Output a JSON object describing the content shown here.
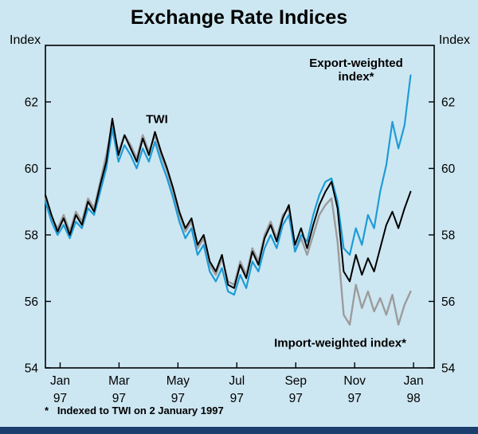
{
  "chart_data": {
    "type": "line",
    "title": "Exchange Rate Indices",
    "axis_unit_left": "Index",
    "axis_unit_right": "Index",
    "footnote": "*   Indexed to TWI on 2 January 1997",
    "x": {
      "start_month": 0,
      "end_month": 12.4,
      "points": 61,
      "description": "Daily-style index series from 2 January 1997 to early January 1998; 61 evenly spaced samples"
    },
    "xlim": [
      0,
      13.2
    ],
    "ylim": [
      54,
      63.7
    ],
    "yticks": [
      54,
      56,
      58,
      60,
      62
    ],
    "x_ticks_months": [
      0.5,
      2.5,
      4.5,
      6.5,
      8.5,
      10.5,
      12.5
    ],
    "x_tick_labels": [
      [
        "Jan",
        "97"
      ],
      [
        "Mar",
        "97"
      ],
      [
        "May",
        "97"
      ],
      [
        "Jul",
        "97"
      ],
      [
        "Sep",
        "97"
      ],
      [
        "Nov",
        "97"
      ],
      [
        "Jan",
        "98"
      ]
    ],
    "annotations": {
      "twi": "TWI",
      "export_line1": "Export-weighted",
      "export_line2": "index*",
      "import": "Import-weighted index*"
    },
    "series": [
      {
        "name": "TWI",
        "color": "#000000",
        "values": [
          59.2,
          58.6,
          58.1,
          58.5,
          58.0,
          58.6,
          58.3,
          59.0,
          58.7,
          59.5,
          60.2,
          61.5,
          60.4,
          61.0,
          60.6,
          60.2,
          60.9,
          60.4,
          61.1,
          60.5,
          60.0,
          59.4,
          58.7,
          58.2,
          58.5,
          57.7,
          58.0,
          57.2,
          56.9,
          57.4,
          56.5,
          56.4,
          57.1,
          56.7,
          57.5,
          57.1,
          57.9,
          58.3,
          57.8,
          58.5,
          58.9,
          57.7,
          58.2,
          57.6,
          58.3,
          58.9,
          59.3,
          59.6,
          58.8,
          56.9,
          56.6,
          57.4,
          56.8,
          57.3,
          56.9,
          57.6,
          58.3,
          58.7,
          58.2,
          58.8,
          59.3
        ]
      },
      {
        "name": "Export-weighted index",
        "color": "#1e9cd7",
        "values": [
          59.0,
          58.4,
          58.0,
          58.3,
          57.9,
          58.4,
          58.2,
          58.8,
          58.6,
          59.3,
          60.0,
          61.2,
          60.2,
          60.7,
          60.4,
          60.0,
          60.6,
          60.2,
          60.8,
          60.2,
          59.7,
          59.1,
          58.4,
          57.9,
          58.2,
          57.4,
          57.7,
          56.9,
          56.6,
          57.0,
          56.3,
          56.2,
          56.8,
          56.4,
          57.2,
          56.9,
          57.6,
          58.0,
          57.6,
          58.3,
          58.6,
          57.5,
          58.0,
          57.8,
          58.6,
          59.2,
          59.6,
          59.7,
          59.0,
          57.6,
          57.4,
          58.2,
          57.7,
          58.6,
          58.2,
          59.3,
          60.1,
          61.4,
          60.6,
          61.3,
          62.8
        ]
      },
      {
        "name": "Import-weighted index",
        "color": "#9c9c9c",
        "values": [
          59.1,
          58.5,
          58.2,
          58.6,
          58.1,
          58.7,
          58.4,
          59.1,
          58.8,
          59.6,
          60.4,
          61.3,
          60.5,
          61.0,
          60.7,
          60.3,
          61.0,
          60.5,
          61.0,
          60.4,
          59.9,
          59.3,
          58.6,
          58.1,
          58.4,
          57.6,
          57.9,
          57.1,
          56.8,
          57.3,
          56.6,
          56.5,
          57.2,
          56.8,
          57.6,
          57.2,
          58.0,
          58.4,
          57.9,
          58.6,
          58.8,
          57.5,
          57.9,
          57.4,
          58.0,
          58.6,
          58.9,
          59.1,
          57.8,
          55.6,
          55.3,
          56.5,
          55.8,
          56.3,
          55.7,
          56.1,
          55.6,
          56.2,
          55.3,
          55.9,
          56.3
        ]
      }
    ]
  },
  "colors": {
    "background": "#cde7f2",
    "frame": "#000000",
    "bottom_bar": "#1c3e6e"
  }
}
